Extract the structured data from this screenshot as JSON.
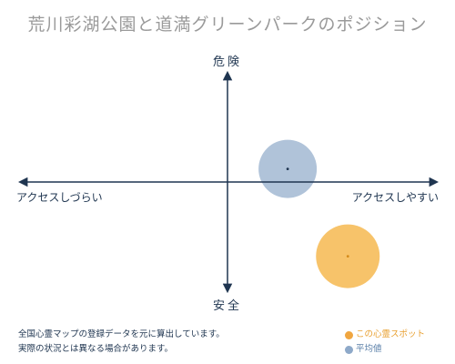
{
  "title": "荒川彩湖公園と道満グリーンパークのポジション",
  "chart_data": {
    "type": "scatter",
    "xlabel_left": "アクセスしづらい",
    "xlabel_right": "アクセスしやすい",
    "ylabel_top": "危険",
    "ylabel_bottom": "安全",
    "xlim": [
      -1,
      1
    ],
    "ylim": [
      -1,
      1
    ],
    "grid": false,
    "series": [
      {
        "name": "この心霊スポット",
        "x": 0.58,
        "y": -0.68,
        "color": "#f5b445"
      },
      {
        "name": "平均値",
        "x": 0.29,
        "y": 0.12,
        "color": "#8ea9c9"
      }
    ]
  },
  "footnote": {
    "line1": "全国心霊マップの登録データを元に算出しています。",
    "line2": "実際の状況とは異なる場合があります。"
  },
  "legend": {
    "this_label": "この心霊スポット",
    "avg_label": "平均値",
    "this_color": "#f0a640",
    "avg_color": "#8ea9c9"
  }
}
